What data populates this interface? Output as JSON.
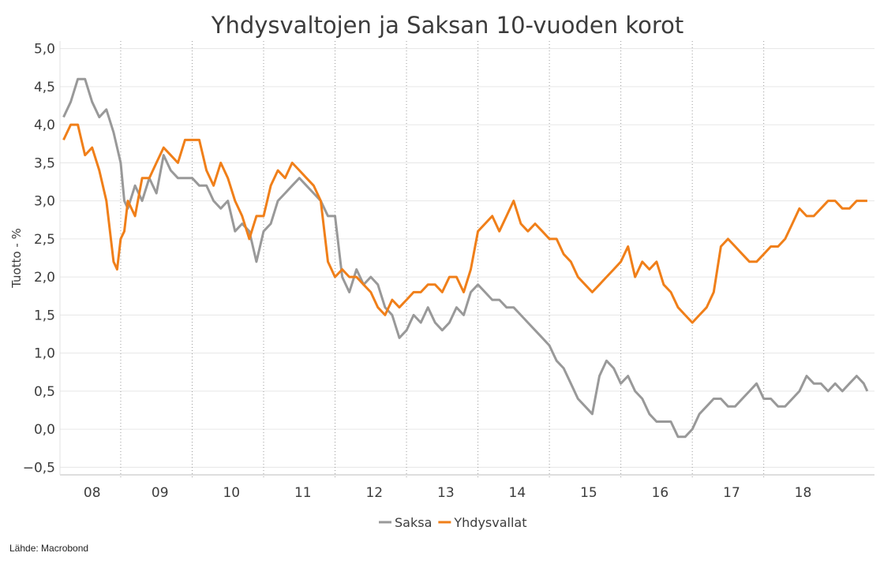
{
  "chart_data": {
    "type": "line",
    "title": "Yhdysvaltojen ja Saksan 10-vuoden korot",
    "ylabel": "Tuotto - %",
    "xlabel": "",
    "ylim": [
      -0.6,
      5.1
    ],
    "xlim": [
      2007.55,
      2018.95
    ],
    "yticks": [
      5.0,
      4.5,
      4.0,
      3.5,
      3.0,
      2.5,
      2.0,
      1.5,
      1.0,
      0.5,
      0.0,
      -0.5
    ],
    "ytick_labels": [
      "5,0",
      "4,5",
      "4,0",
      "3,5",
      "3,0",
      "2,5",
      "2,0",
      "1,5",
      "1,0",
      "0,5",
      "0,0",
      "−0,5"
    ],
    "year_labels": [
      {
        "label": "08",
        "x": 2008.0
      },
      {
        "label": "09",
        "x": 2008.95
      },
      {
        "label": "10",
        "x": 2009.95
      },
      {
        "label": "11",
        "x": 2010.95
      },
      {
        "label": "12",
        "x": 2011.95
      },
      {
        "label": "13",
        "x": 2012.95
      },
      {
        "label": "14",
        "x": 2013.95
      },
      {
        "label": "15",
        "x": 2014.95
      },
      {
        "label": "16",
        "x": 2015.95
      },
      {
        "label": "17",
        "x": 2016.95
      },
      {
        "label": "18",
        "x": 2017.95
      }
    ],
    "year_dividers": [
      2008.4,
      2009.4,
      2010.4,
      2011.4,
      2012.4,
      2013.4,
      2014.4,
      2015.4,
      2016.4,
      2017.4
    ],
    "grid": true,
    "legend_position": "bottom-center",
    "series": [
      {
        "name": "Saksa",
        "color": "#999999",
        "x": [
          2007.6,
          2007.7,
          2007.8,
          2007.9,
          2008.0,
          2008.1,
          2008.2,
          2008.3,
          2008.4,
          2008.45,
          2008.5,
          2008.6,
          2008.7,
          2008.8,
          2008.9,
          2009.0,
          2009.1,
          2009.2,
          2009.3,
          2009.4,
          2009.5,
          2009.6,
          2009.7,
          2009.8,
          2009.9,
          2010.0,
          2010.1,
          2010.2,
          2010.3,
          2010.4,
          2010.5,
          2010.6,
          2010.7,
          2010.8,
          2010.9,
          2011.0,
          2011.1,
          2011.2,
          2011.3,
          2011.4,
          2011.5,
          2011.6,
          2011.7,
          2011.8,
          2011.9,
          2012.0,
          2012.1,
          2012.2,
          2012.3,
          2012.4,
          2012.5,
          2012.6,
          2012.7,
          2012.8,
          2012.9,
          2013.0,
          2013.1,
          2013.2,
          2013.3,
          2013.4,
          2013.5,
          2013.6,
          2013.7,
          2013.8,
          2013.9,
          2014.0,
          2014.1,
          2014.2,
          2014.3,
          2014.4,
          2014.45,
          2014.5,
          2014.6,
          2014.7,
          2014.8,
          2014.9,
          2015.0,
          2015.1,
          2015.2,
          2015.3,
          2015.4,
          2015.5,
          2015.6,
          2015.7,
          2015.8,
          2015.9,
          2016.0,
          2016.1,
          2016.2,
          2016.3,
          2016.4,
          2016.5,
          2016.6,
          2016.7,
          2016.8,
          2016.9,
          2017.0,
          2017.1,
          2017.2,
          2017.3,
          2017.4,
          2017.5,
          2017.6,
          2017.7,
          2017.8,
          2017.9,
          2018.0,
          2018.1,
          2018.2,
          2018.3,
          2018.4,
          2018.5,
          2018.6,
          2018.7,
          2018.8,
          2018.85
        ],
        "values": [
          4.1,
          4.3,
          4.6,
          4.6,
          4.3,
          4.1,
          4.2,
          3.9,
          3.5,
          3.0,
          2.9,
          3.2,
          3.0,
          3.3,
          3.1,
          3.6,
          3.4,
          3.3,
          3.3,
          3.3,
          3.2,
          3.2,
          3.0,
          2.9,
          3.0,
          2.6,
          2.7,
          2.6,
          2.2,
          2.6,
          2.7,
          3.0,
          3.1,
          3.2,
          3.3,
          3.2,
          3.1,
          3.0,
          2.8,
          2.8,
          2.0,
          1.8,
          2.1,
          1.9,
          2.0,
          1.9,
          1.6,
          1.5,
          1.2,
          1.3,
          1.5,
          1.4,
          1.6,
          1.4,
          1.3,
          1.4,
          1.6,
          1.5,
          1.8,
          1.9,
          1.8,
          1.7,
          1.7,
          1.6,
          1.6,
          1.5,
          1.4,
          1.3,
          1.2,
          1.1,
          1.0,
          0.9,
          0.8,
          0.6,
          0.4,
          0.3,
          0.2,
          0.7,
          0.9,
          0.8,
          0.6,
          0.7,
          0.5,
          0.4,
          0.2,
          0.1,
          0.1,
          0.1,
          -0.1,
          -0.1,
          0.0,
          0.2,
          0.3,
          0.4,
          0.4,
          0.3,
          0.3,
          0.4,
          0.5,
          0.6,
          0.4,
          0.4,
          0.3,
          0.3,
          0.4,
          0.5,
          0.7,
          0.6,
          0.6,
          0.5,
          0.6,
          0.5,
          0.6,
          0.7,
          0.6,
          0.5
        ],
        "x_note": ""
      },
      {
        "name": "Yhdysvallat",
        "color": "#f07f19",
        "x": [
          2007.6,
          2007.7,
          2007.8,
          2007.9,
          2008.0,
          2008.1,
          2008.2,
          2008.3,
          2008.35,
          2008.4,
          2008.45,
          2008.5,
          2008.6,
          2008.7,
          2008.8,
          2008.9,
          2009.0,
          2009.1,
          2009.2,
          2009.3,
          2009.4,
          2009.5,
          2009.6,
          2009.7,
          2009.8,
          2009.9,
          2010.0,
          2010.1,
          2010.2,
          2010.3,
          2010.4,
          2010.5,
          2010.6,
          2010.7,
          2010.8,
          2010.9,
          2011.0,
          2011.1,
          2011.2,
          2011.3,
          2011.4,
          2011.5,
          2011.6,
          2011.7,
          2011.8,
          2011.9,
          2012.0,
          2012.1,
          2012.2,
          2012.3,
          2012.4,
          2012.5,
          2012.6,
          2012.7,
          2012.8,
          2012.9,
          2013.0,
          2013.1,
          2013.2,
          2013.3,
          2013.4,
          2013.5,
          2013.6,
          2013.7,
          2013.8,
          2013.9,
          2014.0,
          2014.1,
          2014.2,
          2014.3,
          2014.4,
          2014.5,
          2014.6,
          2014.7,
          2014.8,
          2014.9,
          2015.0,
          2015.1,
          2015.2,
          2015.3,
          2015.4,
          2015.5,
          2015.6,
          2015.7,
          2015.8,
          2015.9,
          2016.0,
          2016.1,
          2016.2,
          2016.3,
          2016.4,
          2016.5,
          2016.6,
          2016.7,
          2016.8,
          2016.9,
          2017.0,
          2017.1,
          2017.2,
          2017.3,
          2017.4,
          2017.5,
          2017.6,
          2017.7,
          2017.8,
          2017.9,
          2018.0,
          2018.1,
          2018.2,
          2018.3,
          2018.4,
          2018.5,
          2018.6,
          2018.7,
          2018.8,
          2018.85
        ],
        "values": [
          3.8,
          4.0,
          4.0,
          3.6,
          3.7,
          3.4,
          3.0,
          2.2,
          2.1,
          2.5,
          2.6,
          3.0,
          2.8,
          3.3,
          3.3,
          3.5,
          3.7,
          3.6,
          3.5,
          3.8,
          3.8,
          3.8,
          3.4,
          3.2,
          3.5,
          3.3,
          3.0,
          2.8,
          2.5,
          2.8,
          2.8,
          3.2,
          3.4,
          3.3,
          3.5,
          3.4,
          3.3,
          3.2,
          3.0,
          2.2,
          2.0,
          2.1,
          2.0,
          2.0,
          1.9,
          1.8,
          1.6,
          1.5,
          1.7,
          1.6,
          1.7,
          1.8,
          1.8,
          1.9,
          1.9,
          1.8,
          2.0,
          2.0,
          1.8,
          2.1,
          2.6,
          2.7,
          2.8,
          2.6,
          2.8,
          3.0,
          2.7,
          2.6,
          2.7,
          2.6,
          2.5,
          2.5,
          2.3,
          2.2,
          2.0,
          1.9,
          1.8,
          1.9,
          2.0,
          2.1,
          2.2,
          2.4,
          2.0,
          2.2,
          2.1,
          2.2,
          1.9,
          1.8,
          1.6,
          1.5,
          1.4,
          1.5,
          1.6,
          1.8,
          2.4,
          2.5,
          2.4,
          2.3,
          2.2,
          2.2,
          2.3,
          2.4,
          2.4,
          2.5,
          2.7,
          2.9,
          2.8,
          2.8,
          2.9,
          3.0,
          3.0,
          2.9,
          2.9,
          3.0,
          3.0,
          3.0
        ],
        "x_note": ""
      }
    ]
  },
  "source": "Lähde: Macrobond"
}
